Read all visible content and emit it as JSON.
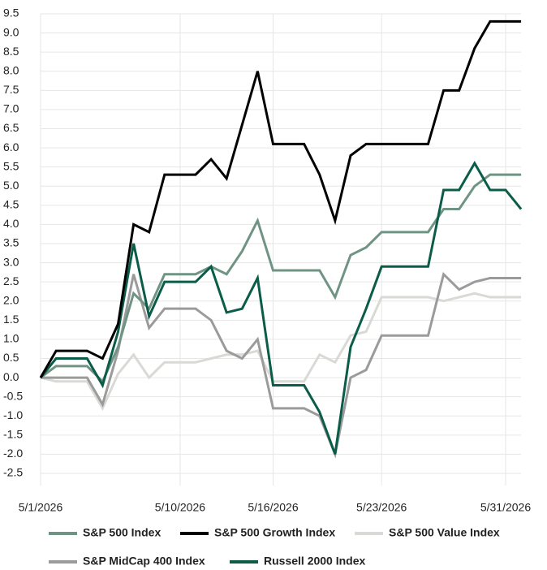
{
  "chart_data": {
    "type": "line",
    "categories": [
      "5/1/2026",
      null,
      null,
      null,
      null,
      null,
      null,
      null,
      null,
      "5/10/2026",
      null,
      null,
      null,
      null,
      null,
      "5/16/2026",
      null,
      null,
      null,
      null,
      null,
      null,
      "5/23/2026",
      null,
      null,
      null,
      null,
      null,
      null,
      null,
      "5/31/2026",
      null
    ],
    "series": [
      {
        "name": "S&P 500 Index",
        "color": "#6f9484",
        "values": [
          0,
          0.3,
          0.3,
          0.3,
          -0.1,
          0.8,
          2.2,
          1.8,
          2.7,
          2.7,
          2.7,
          2.9,
          2.7,
          3.3,
          4.1,
          2.8,
          2.8,
          2.8,
          2.8,
          2.1,
          3.2,
          3.4,
          3.8,
          3.8,
          3.8,
          3.8,
          4.4,
          4.4,
          5.0,
          5.3,
          5.3,
          5.3
        ]
      },
      {
        "name": "S&P 500 Growth Index",
        "color": "#000000",
        "values": [
          0,
          0.7,
          0.7,
          0.7,
          0.5,
          1.4,
          4.0,
          3.8,
          5.3,
          5.3,
          5.3,
          5.7,
          5.2,
          6.6,
          8.0,
          6.1,
          6.1,
          6.1,
          5.3,
          4.1,
          5.8,
          6.1,
          6.1,
          6.1,
          6.1,
          6.1,
          7.5,
          7.5,
          8.6,
          9.3,
          9.3,
          9.3
        ]
      },
      {
        "name": "S&P 500 Value Index",
        "color": "#d9d9d6",
        "values": [
          0,
          -0.1,
          -0.1,
          -0.1,
          -0.8,
          0.1,
          0.6,
          0.0,
          0.4,
          0.4,
          0.4,
          0.5,
          0.6,
          0.6,
          0.7,
          -0.1,
          -0.1,
          -0.1,
          0.6,
          0.4,
          1.1,
          1.2,
          2.1,
          2.1,
          2.1,
          2.1,
          2.0,
          2.1,
          2.2,
          2.1,
          2.1,
          2.1
        ]
      },
      {
        "name": "S&P MidCap 400 Index",
        "color": "#9b9b9b",
        "values": [
          0,
          0,
          0,
          0,
          -0.7,
          0.7,
          2.7,
          1.3,
          1.8,
          1.8,
          1.8,
          1.5,
          0.7,
          0.5,
          1.0,
          -0.8,
          -0.8,
          -0.8,
          -1.0,
          -2.0,
          0.0,
          0.2,
          1.1,
          1.1,
          1.1,
          1.1,
          2.7,
          2.3,
          2.5,
          2.6,
          2.6,
          2.6
        ]
      },
      {
        "name": "Russell 2000 Index",
        "color": "#0b5c48",
        "values": [
          0,
          0.5,
          0.5,
          0.5,
          -0.2,
          1.2,
          3.5,
          1.6,
          2.5,
          2.5,
          2.5,
          2.9,
          1.7,
          1.8,
          2.6,
          -0.2,
          -0.2,
          -0.2,
          -0.9,
          -2.0,
          0.8,
          1.8,
          2.9,
          2.9,
          2.9,
          2.9,
          4.9,
          4.9,
          5.6,
          4.9,
          4.9,
          4.4
        ]
      }
    ],
    "ylim": [
      -2.5,
      9.5
    ],
    "yticks": [
      -2.5,
      {
        "value": -2,
        "label": "-2.0"
      },
      -1.5,
      {
        "value": -1,
        "label": "-1.0"
      },
      -0.5,
      {
        "value": 0,
        "label": "0.0"
      },
      0.5,
      {
        "value": 1,
        "label": "1.0"
      },
      1.5,
      {
        "value": 2,
        "label": "2.0"
      },
      2.5,
      {
        "value": 3,
        "label": "3.0"
      },
      3.5,
      {
        "value": 4,
        "label": "4.0"
      },
      4.5,
      {
        "value": 5,
        "label": "5.0"
      },
      5.5,
      {
        "value": 6,
        "label": "6.0"
      },
      6.5,
      {
        "value": 7,
        "label": "7.0"
      },
      7.5,
      {
        "value": 8,
        "label": "8.0"
      },
      8.5,
      {
        "value": 9,
        "label": "9.0"
      },
      9.5
    ],
    "grid": true
  }
}
